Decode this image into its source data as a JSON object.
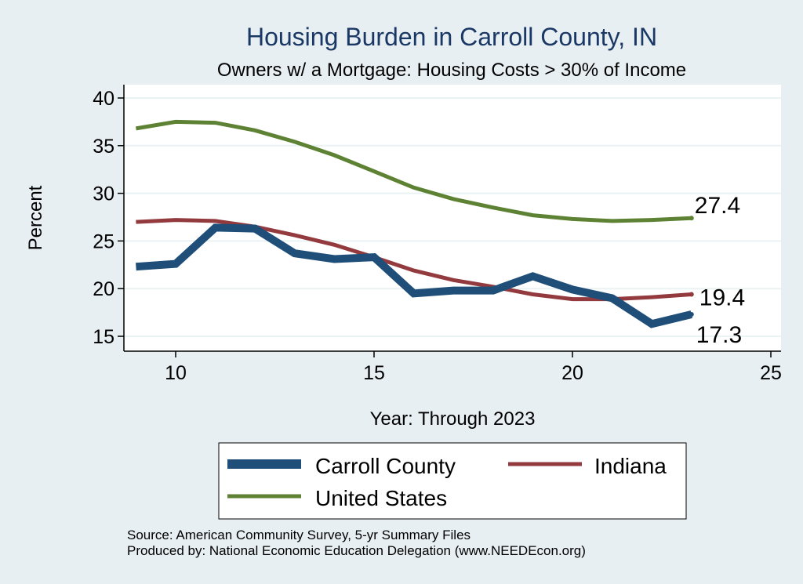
{
  "chart_data": {
    "type": "line",
    "title": "Housing Burden in Carroll County, IN",
    "subtitle": "Owners w/ a Mortgage: Housing Costs > 30% of Income",
    "xlabel": "Year: Through 2023",
    "ylabel": "Percent",
    "xlim": [
      9,
      25
    ],
    "ylim": [
      15,
      40
    ],
    "x_ticks": [
      10,
      15,
      20,
      25
    ],
    "y_ticks": [
      15,
      20,
      25,
      30,
      35,
      40
    ],
    "grid": true,
    "legend_position": "bottom",
    "x": [
      9,
      10,
      11,
      12,
      13,
      14,
      15,
      16,
      17,
      18,
      19,
      20,
      21,
      22,
      23
    ],
    "series": [
      {
        "name": "Carroll County",
        "color": "#1f4e79",
        "values": [
          22.3,
          22.6,
          26.4,
          26.3,
          23.7,
          23.1,
          23.3,
          19.5,
          19.8,
          19.8,
          21.3,
          19.9,
          19.0,
          16.3,
          17.3
        ],
        "end_label": "17.3"
      },
      {
        "name": "Indiana",
        "color": "#933a3e",
        "values": [
          27.0,
          27.2,
          27.1,
          26.5,
          25.6,
          24.6,
          23.3,
          21.9,
          20.9,
          20.2,
          19.4,
          18.9,
          18.9,
          19.1,
          19.4
        ],
        "end_label": "19.4"
      },
      {
        "name": "United States",
        "color": "#5d8233",
        "values": [
          36.8,
          37.5,
          37.4,
          36.6,
          35.4,
          34.0,
          32.3,
          30.6,
          29.4,
          28.5,
          27.7,
          27.3,
          27.1,
          27.2,
          27.4
        ],
        "end_label": "27.4"
      }
    ]
  },
  "legend": {
    "items": [
      {
        "label": "Carroll County",
        "color": "#1f4e79"
      },
      {
        "label": "Indiana",
        "color": "#933a3e"
      },
      {
        "label": "United States",
        "color": "#5d8233"
      }
    ]
  },
  "notes": {
    "source": "Source: American Community Survey, 5-yr Summary Files",
    "produced_by": "Produced by: National Economic Education Delegation (www.NEEDEcon.org)"
  }
}
